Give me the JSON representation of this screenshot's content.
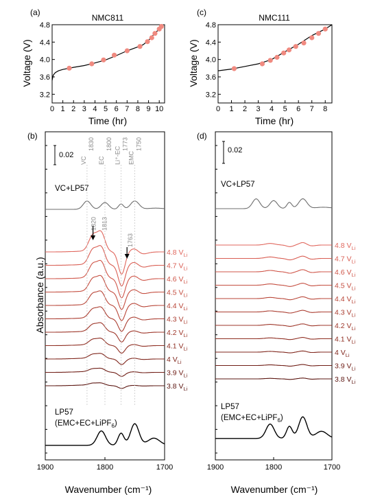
{
  "chart_data": [
    {
      "panel": "(a)",
      "type": "line",
      "title": "NMC811",
      "xlabel": "Time (hr)",
      "ylabel": "Voltage (V)",
      "xlim": [
        0,
        10.5
      ],
      "ylim": [
        3.0,
        4.8
      ],
      "xticks": [
        0,
        1,
        2,
        3,
        4,
        5,
        6,
        7,
        8,
        9,
        10
      ],
      "yticks": [
        3.2,
        3.6,
        4.0,
        4.4,
        4.8
      ],
      "curve": [
        [
          0,
          3.52
        ],
        [
          0.1,
          3.64
        ],
        [
          0.3,
          3.7
        ],
        [
          0.6,
          3.74
        ],
        [
          1,
          3.77
        ],
        [
          2,
          3.82
        ],
        [
          3,
          3.86
        ],
        [
          4,
          3.92
        ],
        [
          5,
          3.99
        ],
        [
          6,
          4.09
        ],
        [
          7,
          4.2
        ],
        [
          8,
          4.29
        ],
        [
          8.5,
          4.34
        ],
        [
          9,
          4.44
        ],
        [
          9.5,
          4.58
        ],
        [
          10,
          4.7
        ],
        [
          10.4,
          4.8
        ]
      ],
      "markers": [
        [
          1.6,
          3.8
        ],
        [
          3.7,
          3.9
        ],
        [
          4.8,
          3.99
        ],
        [
          5.8,
          4.1
        ],
        [
          7.0,
          4.2
        ],
        [
          8.2,
          4.3
        ],
        [
          8.9,
          4.41
        ],
        [
          9.3,
          4.5
        ],
        [
          9.6,
          4.6
        ],
        [
          10.0,
          4.7
        ],
        [
          10.2,
          4.76
        ]
      ]
    },
    {
      "panel": "(c)",
      "type": "line",
      "title": "NMC111",
      "xlabel": "Time (hr)",
      "ylabel": "Voltage (V)",
      "xlim": [
        0,
        8.5
      ],
      "ylim": [
        3.0,
        4.8
      ],
      "xticks": [
        0,
        1,
        2,
        3,
        4,
        5,
        6,
        7,
        8
      ],
      "yticks": [
        3.2,
        3.6,
        4.0,
        4.4,
        4.8
      ],
      "curve": [
        [
          0,
          3.74
        ],
        [
          1,
          3.78
        ],
        [
          2,
          3.84
        ],
        [
          3,
          3.9
        ],
        [
          4,
          4.0
        ],
        [
          5,
          4.18
        ],
        [
          6,
          4.35
        ],
        [
          7,
          4.55
        ],
        [
          8,
          4.7
        ],
        [
          8.5,
          4.8
        ]
      ],
      "markers": [
        [
          1.2,
          3.79
        ],
        [
          3.3,
          3.9
        ],
        [
          3.9,
          3.98
        ],
        [
          4.4,
          4.05
        ],
        [
          4.9,
          4.15
        ],
        [
          5.3,
          4.22
        ],
        [
          5.8,
          4.3
        ],
        [
          6.4,
          4.38
        ],
        [
          7.0,
          4.5
        ],
        [
          7.5,
          4.6
        ],
        [
          8.0,
          4.7
        ]
      ]
    },
    {
      "panel": "(b)",
      "type": "line",
      "xlabel": "Wavenumber (cm⁻¹)",
      "ylabel": "Absorbance (a.u.)",
      "xlim": [
        1900,
        1700
      ],
      "xticks": [
        1900,
        1800,
        1700
      ],
      "scale_bar": "0.02",
      "guides": [
        {
          "x": 1830,
          "label": "VC"
        },
        {
          "x": 1830,
          "label": "1830"
        },
        {
          "x": 1800,
          "label": "EC"
        },
        {
          "x": 1800,
          "label": "1800"
        },
        {
          "x": 1773,
          "label": "Li⁺-EC"
        },
        {
          "x": 1773,
          "label": "1773"
        },
        {
          "x": 1750,
          "label": "EMC"
        },
        {
          "x": 1750,
          "label": "1750"
        }
      ],
      "annotations": [
        {
          "text": "1820",
          "x": 1820
        },
        {
          "text": "1813",
          "x": 1813
        },
        {
          "text": "1763",
          "x": 1763
        }
      ],
      "reference_top": "VC+LP57",
      "reference_bottom_line1": "LP57",
      "reference_bottom_line2": "(EMC+EC+LiPF6)",
      "series": [
        {
          "voltage": "4.8",
          "sub": "Li",
          "color": "#e0665c",
          "amp": 1.0
        },
        {
          "voltage": "4.7",
          "sub": "Li",
          "color": "#d95d52",
          "amp": 0.93
        },
        {
          "voltage": "4.6",
          "sub": "Li",
          "color": "#cf5548",
          "amp": 0.86
        },
        {
          "voltage": "4.5",
          "sub": "Li",
          "color": "#c44d3f",
          "amp": 0.78
        },
        {
          "voltage": "4.4",
          "sub": "Li",
          "color": "#b84537",
          "amp": 0.68
        },
        {
          "voltage": "4.3",
          "sub": "Li",
          "color": "#ab3d30",
          "amp": 0.56
        },
        {
          "voltage": "4.2",
          "sub": "Li",
          "color": "#9d3528",
          "amp": 0.44
        },
        {
          "voltage": "4.1",
          "sub": "Li",
          "color": "#8e2d21",
          "amp": 0.34
        },
        {
          "voltage": "4",
          "sub": "Li",
          "color": "#7f251b",
          "amp": 0.25
        },
        {
          "voltage": "3.9",
          "sub": "Li",
          "color": "#6f1d15",
          "amp": 0.18
        },
        {
          "voltage": "3.8",
          "sub": "Li",
          "color": "#5a140f",
          "amp": 0.12
        }
      ]
    },
    {
      "panel": "(d)",
      "type": "line",
      "xlabel": "Wavenumber (cm⁻¹)",
      "ylabel": "",
      "xlim": [
        1900,
        1700
      ],
      "xticks": [
        1900,
        1800,
        1700
      ],
      "scale_bar": "0.02",
      "reference_top": "VC+LP57",
      "reference_bottom_line1": "LP57",
      "reference_bottom_line2": "(EMC+EC+LiPF6)",
      "series": [
        {
          "voltage": "4.8",
          "sub": "Li",
          "color": "#e0665c",
          "amp": 0.3
        },
        {
          "voltage": "4.7",
          "sub": "Li",
          "color": "#d95d52",
          "amp": 0.28
        },
        {
          "voltage": "4.6",
          "sub": "Li",
          "color": "#cf5548",
          "amp": 0.26
        },
        {
          "voltage": "4.5",
          "sub": "Li",
          "color": "#c44d3f",
          "amp": 0.24
        },
        {
          "voltage": "4.4",
          "sub": "Li",
          "color": "#b84537",
          "amp": 0.22
        },
        {
          "voltage": "4.3",
          "sub": "Li",
          "color": "#ab3d30",
          "amp": 0.2
        },
        {
          "voltage": "4.2",
          "sub": "Li",
          "color": "#9d3528",
          "amp": 0.18
        },
        {
          "voltage": "4.1",
          "sub": "Li",
          "color": "#8e2d21",
          "amp": 0.16
        },
        {
          "voltage": "4",
          "sub": "Li",
          "color": "#7f251b",
          "amp": 0.14
        },
        {
          "voltage": "3.9",
          "sub": "Li",
          "color": "#6f1d15",
          "amp": 0.12
        },
        {
          "voltage": "3.8",
          "sub": "Li",
          "color": "#5a140f",
          "amp": 0.1
        }
      ]
    }
  ],
  "colors": {
    "marker": "#f08a80",
    "vc_lp57": "#6d6d6d",
    "lp57": "#000000"
  }
}
